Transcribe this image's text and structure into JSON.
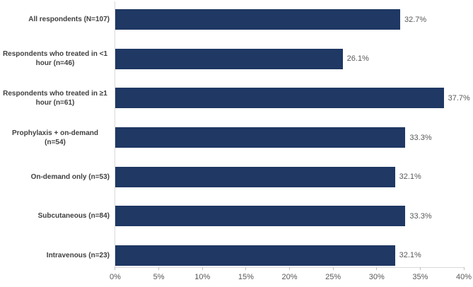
{
  "chart_data": {
    "type": "bar",
    "orientation": "horizontal",
    "title": "",
    "xlabel": "",
    "ylabel": "",
    "categories": [
      "All respondents (N=107)",
      "Respondents who treated in <1 hour (n=46)",
      "Respondents who treated in ≥1 hour (n=61)",
      "Prophylaxis + on-demand (n=54)",
      "On-demand only (n=53)",
      "Subcutaneous (n=84)",
      "Intravenous (n=23)"
    ],
    "values": [
      32.7,
      26.1,
      37.7,
      33.3,
      32.1,
      33.3,
      32.1
    ],
    "data_labels": [
      "32.7%",
      "26.1%",
      "37.7%",
      "33.3%",
      "32.1%",
      "33.3%",
      "32.1%"
    ],
    "xlim": [
      0,
      40
    ],
    "x_ticks": [
      "0%",
      "5%",
      "10%",
      "15%",
      "20%",
      "25%",
      "30%",
      "35%",
      "40%"
    ],
    "grid": false,
    "legend": "none",
    "colors": {
      "bar": "#1f3864",
      "category_label": "#404040",
      "value_label": "#595959",
      "tick_label": "#595959",
      "axis_line": "#d9d9d9",
      "tick_mark": "#bfbfbf",
      "background": "#ffffff"
    }
  }
}
